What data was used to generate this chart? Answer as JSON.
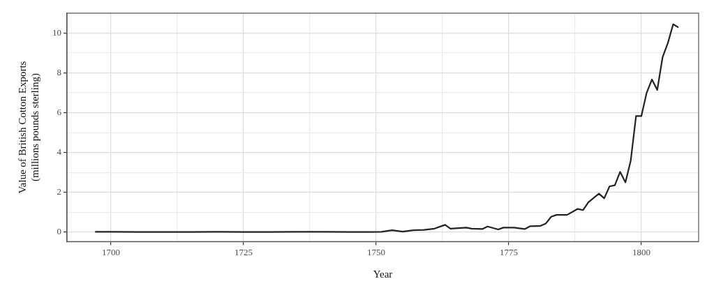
{
  "chart_data": {
    "type": "line",
    "xlabel": "Year",
    "ylabel": "Value of British Cotton Exports\n(millions pounds sterling)",
    "x": [
      1697,
      1700,
      1705,
      1710,
      1715,
      1720,
      1725,
      1730,
      1735,
      1740,
      1745,
      1749,
      1751,
      1753,
      1755,
      1757,
      1759,
      1761,
      1763,
      1764,
      1767,
      1768,
      1770,
      1771,
      1773,
      1774,
      1776,
      1778,
      1779,
      1781,
      1782,
      1783,
      1784,
      1786,
      1788,
      1789,
      1790,
      1792,
      1793,
      1794,
      1795,
      1796,
      1797,
      1798,
      1799,
      1800,
      1801,
      1802,
      1803,
      1804,
      1805,
      1806,
      1807
    ],
    "series": [
      {
        "color": "#222222",
        "values": [
          0.02,
          0.02,
          0.01,
          0.01,
          0.01,
          0.02,
          0.01,
          0.01,
          0.02,
          0.02,
          0.01,
          0.01,
          0.02,
          0.1,
          0.03,
          0.1,
          0.12,
          0.18,
          0.37,
          0.18,
          0.23,
          0.18,
          0.16,
          0.29,
          0.14,
          0.23,
          0.23,
          0.16,
          0.3,
          0.32,
          0.44,
          0.78,
          0.87,
          0.87,
          1.17,
          1.11,
          1.5,
          1.94,
          1.7,
          2.3,
          2.36,
          3.03,
          2.5,
          3.6,
          5.83,
          5.83,
          7.0,
          7.67,
          7.14,
          8.78,
          9.5,
          10.44,
          10.28
        ]
      }
    ],
    "xlim": [
      1691.7,
      1810.8
    ],
    "xticks": [
      1700,
      {
        "value": 1712.5,
        "label": null
      },
      1725,
      {
        "value": 1737.5,
        "label": null
      },
      1750,
      {
        "value": 1762.5,
        "label": null
      },
      1775,
      {
        "value": 1787.5,
        "label": null
      },
      1800
    ],
    "ylim": [
      -0.47,
      11
    ],
    "yticks": [
      0,
      {
        "value": 1,
        "label": null
      },
      2,
      {
        "value": 3,
        "label": null
      },
      4,
      {
        "value": 5,
        "label": null
      },
      6,
      {
        "value": 7,
        "label": null
      },
      8,
      {
        "value": 9,
        "label": null
      },
      10
    ],
    "grid": true,
    "legend": false,
    "marker": "none",
    "line_style": "solid"
  }
}
